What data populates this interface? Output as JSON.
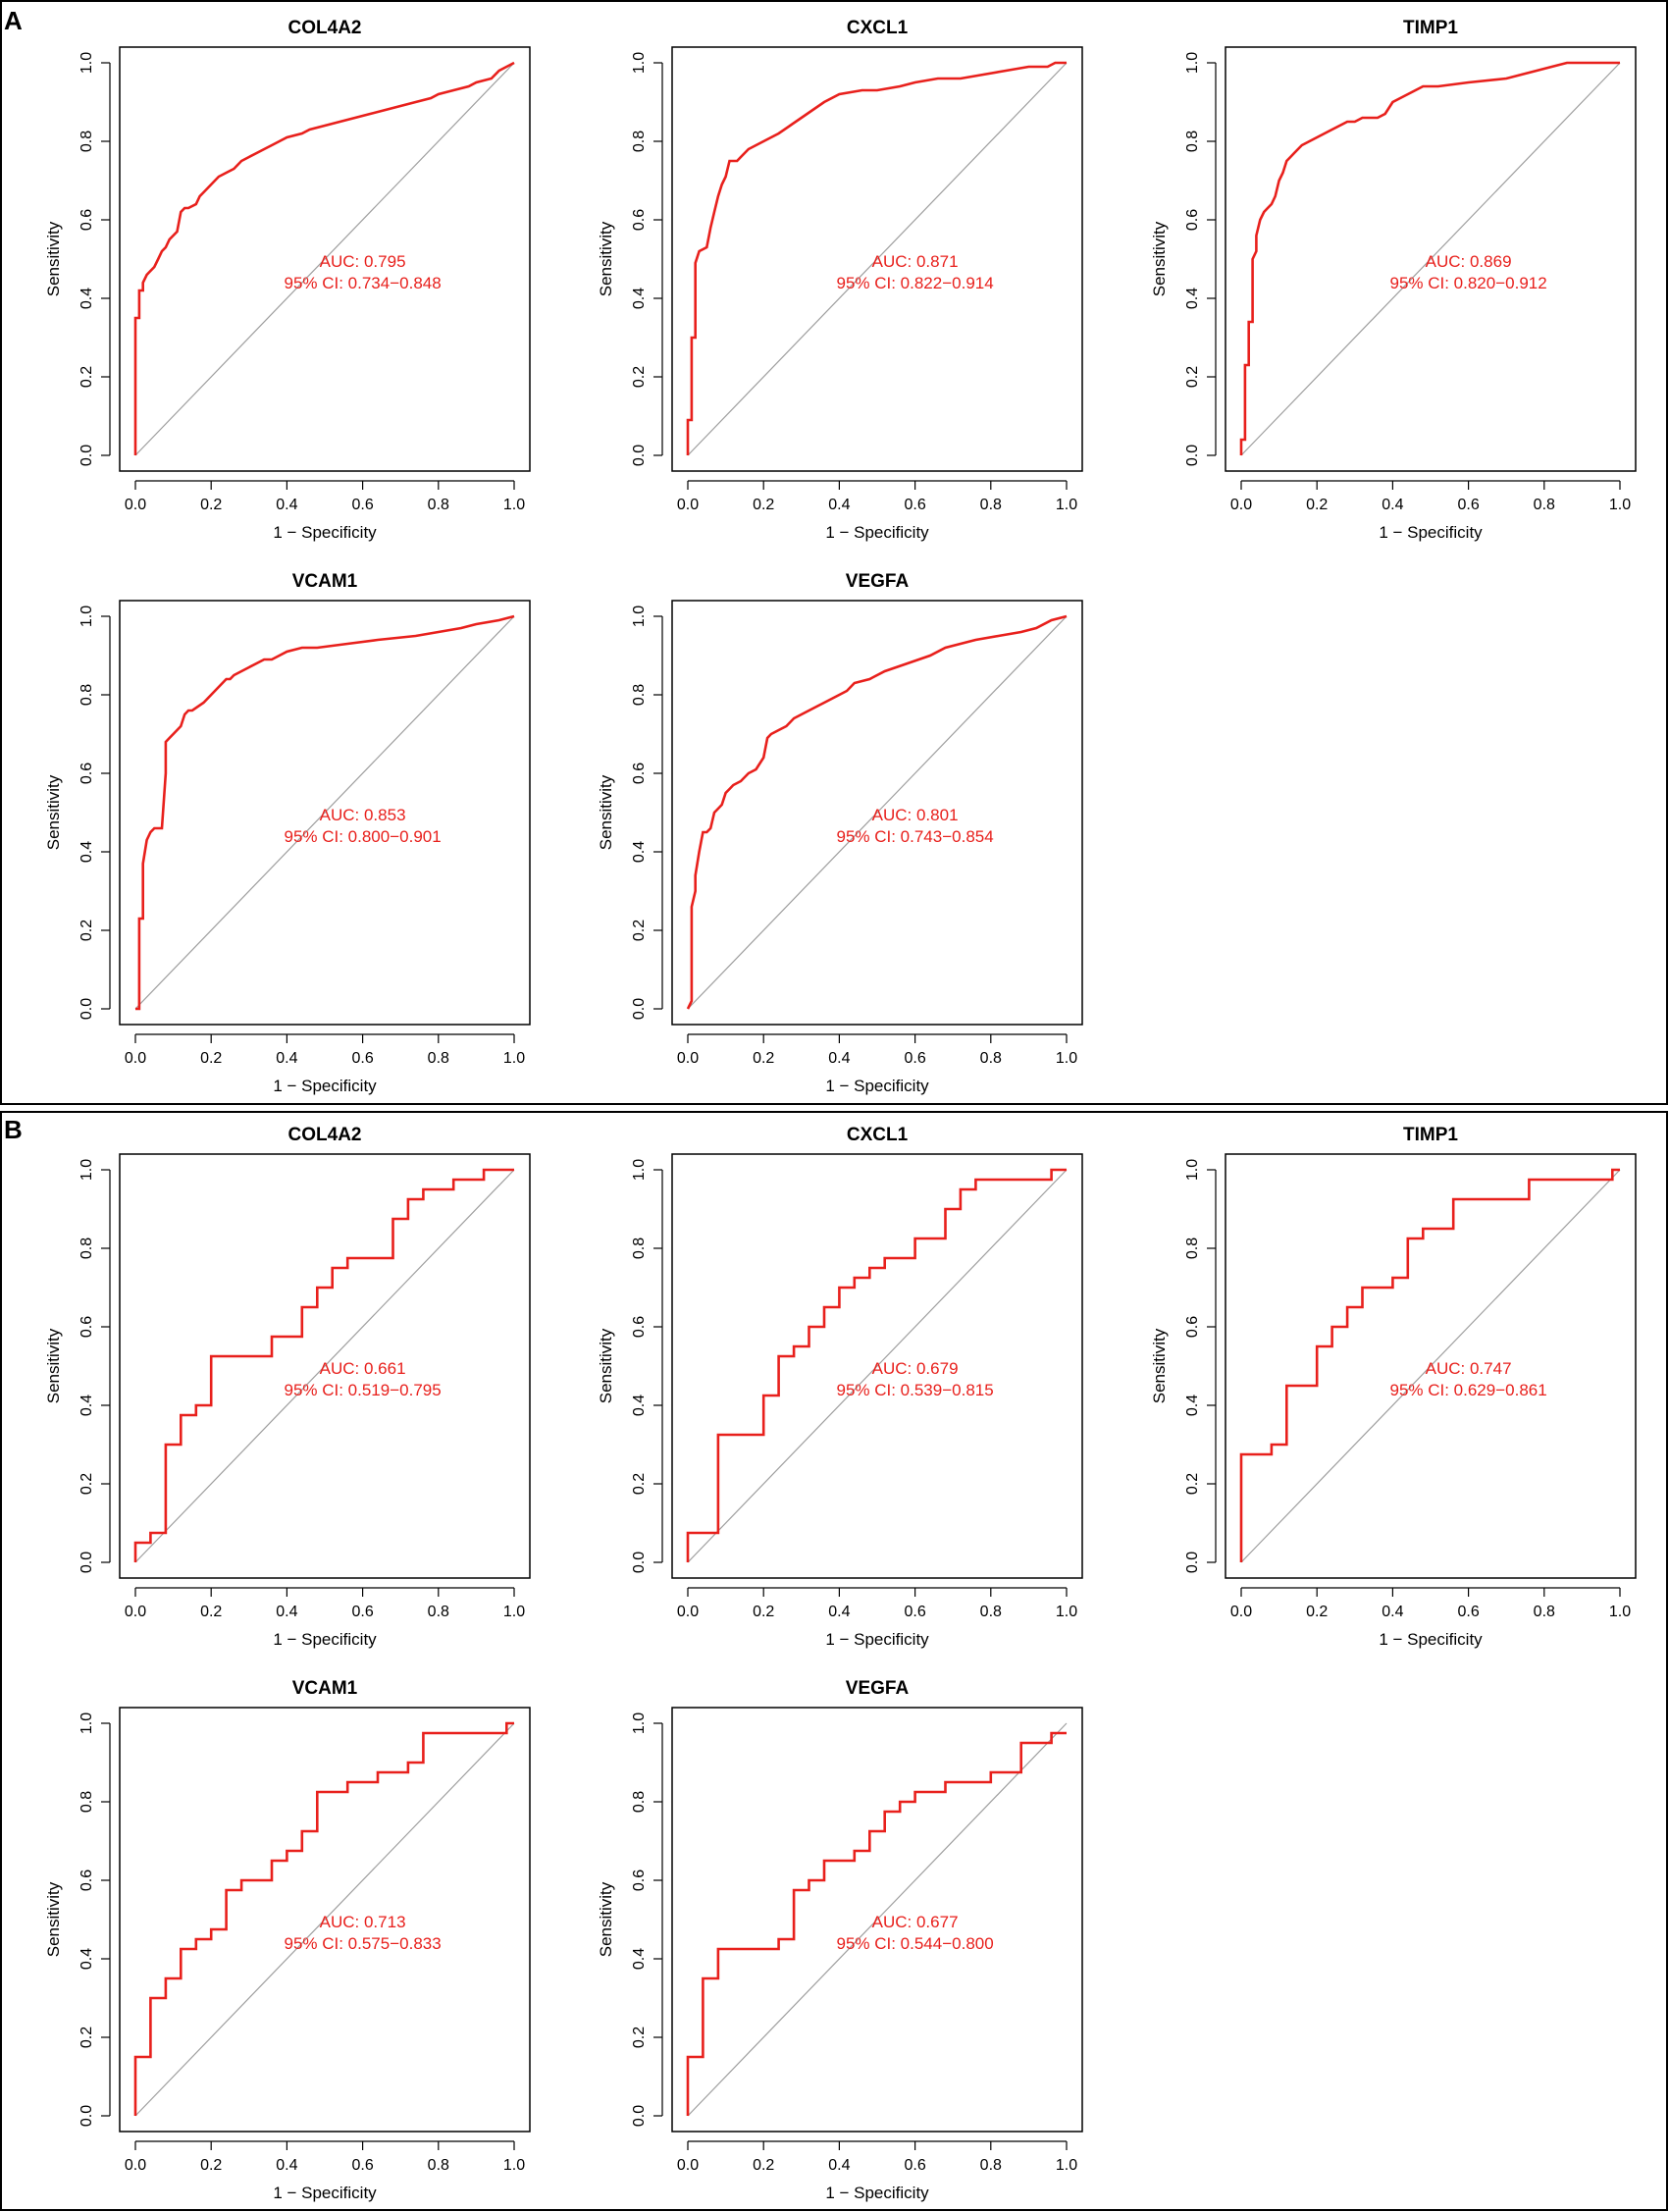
{
  "colors": {
    "roc": "#e8201c",
    "diagonal": "#9e9e9e",
    "axis": "#000000"
  },
  "panels": [
    {
      "letter": "A"
    },
    {
      "letter": "B"
    }
  ],
  "chart_data": [
    {
      "type": "line",
      "panel": "A",
      "title": "COL4A2",
      "xlabel": "1 − Specificity",
      "ylabel": "Sensitivity",
      "xlim": [
        0,
        1
      ],
      "ylim": [
        0,
        1
      ],
      "xticks": [
        "0.0",
        "0.2",
        "0.4",
        "0.6",
        "0.8",
        "1.0"
      ],
      "yticks": [
        "0.0",
        "0.2",
        "0.4",
        "0.6",
        "0.8",
        "1.0"
      ],
      "auc_text": "AUC: 0.795",
      "ci_text": "95% CI: 0.734−0.848",
      "x": [
        0,
        0,
        0.01,
        0.01,
        0.02,
        0.02,
        0.03,
        0.04,
        0.05,
        0.06,
        0.07,
        0.08,
        0.09,
        0.1,
        0.11,
        0.12,
        0.13,
        0.14,
        0.16,
        0.17,
        0.18,
        0.2,
        0.22,
        0.24,
        0.26,
        0.28,
        0.3,
        0.32,
        0.34,
        0.36,
        0.38,
        0.4,
        0.44,
        0.46,
        0.5,
        0.54,
        0.58,
        0.62,
        0.66,
        0.7,
        0.74,
        0.78,
        0.8,
        0.84,
        0.88,
        0.9,
        0.94,
        0.96,
        0.98,
        1.0
      ],
      "y": [
        0,
        0.35,
        0.35,
        0.42,
        0.42,
        0.44,
        0.46,
        0.47,
        0.48,
        0.5,
        0.52,
        0.53,
        0.55,
        0.56,
        0.57,
        0.62,
        0.63,
        0.63,
        0.64,
        0.66,
        0.67,
        0.69,
        0.71,
        0.72,
        0.73,
        0.75,
        0.76,
        0.77,
        0.78,
        0.79,
        0.8,
        0.81,
        0.82,
        0.83,
        0.84,
        0.85,
        0.86,
        0.87,
        0.88,
        0.89,
        0.9,
        0.91,
        0.92,
        0.93,
        0.94,
        0.95,
        0.96,
        0.98,
        0.99,
        1.0
      ]
    },
    {
      "type": "line",
      "panel": "A",
      "title": "CXCL1",
      "xlabel": "1 − Specificity",
      "ylabel": "Sensitivity",
      "xlim": [
        0,
        1
      ],
      "ylim": [
        0,
        1
      ],
      "xticks": [
        "0.0",
        "0.2",
        "0.4",
        "0.6",
        "0.8",
        "1.0"
      ],
      "yticks": [
        "0.0",
        "0.2",
        "0.4",
        "0.6",
        "0.8",
        "1.0"
      ],
      "auc_text": "AUC: 0.871",
      "ci_text": "95% CI: 0.822−0.914",
      "x": [
        0,
        0,
        0.01,
        0.01,
        0.02,
        0.02,
        0.03,
        0.05,
        0.06,
        0.07,
        0.08,
        0.09,
        0.1,
        0.11,
        0.13,
        0.14,
        0.16,
        0.18,
        0.2,
        0.22,
        0.24,
        0.27,
        0.3,
        0.33,
        0.36,
        0.4,
        0.46,
        0.5,
        0.56,
        0.6,
        0.66,
        0.72,
        0.78,
        0.84,
        0.9,
        0.95,
        0.97,
        1.0
      ],
      "y": [
        0,
        0.09,
        0.09,
        0.3,
        0.3,
        0.49,
        0.52,
        0.53,
        0.58,
        0.62,
        0.66,
        0.69,
        0.71,
        0.75,
        0.75,
        0.76,
        0.78,
        0.79,
        0.8,
        0.81,
        0.82,
        0.84,
        0.86,
        0.88,
        0.9,
        0.92,
        0.93,
        0.93,
        0.94,
        0.95,
        0.96,
        0.96,
        0.97,
        0.98,
        0.99,
        0.99,
        1.0,
        1.0
      ]
    },
    {
      "type": "line",
      "panel": "A",
      "title": "TIMP1",
      "xlabel": "1 − Specificity",
      "ylabel": "Sensitivity",
      "xlim": [
        0,
        1
      ],
      "ylim": [
        0,
        1
      ],
      "xticks": [
        "0.0",
        "0.2",
        "0.4",
        "0.6",
        "0.8",
        "1.0"
      ],
      "yticks": [
        "0.0",
        "0.2",
        "0.4",
        "0.6",
        "0.8",
        "1.0"
      ],
      "auc_text": "AUC: 0.869",
      "ci_text": "95% CI: 0.820−0.912",
      "x": [
        0,
        0,
        0.01,
        0.01,
        0.02,
        0.02,
        0.03,
        0.03,
        0.04,
        0.04,
        0.05,
        0.06,
        0.07,
        0.08,
        0.09,
        0.1,
        0.11,
        0.12,
        0.13,
        0.14,
        0.15,
        0.16,
        0.18,
        0.2,
        0.22,
        0.24,
        0.26,
        0.28,
        0.3,
        0.32,
        0.36,
        0.38,
        0.4,
        0.42,
        0.46,
        0.48,
        0.52,
        0.6,
        0.7,
        0.74,
        0.78,
        0.82,
        0.86,
        0.9,
        1.0
      ],
      "y": [
        0,
        0.04,
        0.04,
        0.23,
        0.23,
        0.34,
        0.34,
        0.5,
        0.52,
        0.56,
        0.6,
        0.62,
        0.63,
        0.64,
        0.66,
        0.7,
        0.72,
        0.75,
        0.76,
        0.77,
        0.78,
        0.79,
        0.8,
        0.81,
        0.82,
        0.83,
        0.84,
        0.85,
        0.85,
        0.86,
        0.86,
        0.87,
        0.9,
        0.91,
        0.93,
        0.94,
        0.94,
        0.95,
        0.96,
        0.97,
        0.98,
        0.99,
        1.0,
        1.0,
        1.0
      ]
    },
    {
      "type": "line",
      "panel": "A",
      "title": "VCAM1",
      "xlabel": "1 − Specificity",
      "ylabel": "Sensitivity",
      "xlim": [
        0,
        1
      ],
      "ylim": [
        0,
        1
      ],
      "xticks": [
        "0.0",
        "0.2",
        "0.4",
        "0.6",
        "0.8",
        "1.0"
      ],
      "yticks": [
        "0.0",
        "0.2",
        "0.4",
        "0.6",
        "0.8",
        "1.0"
      ],
      "auc_text": "AUC: 0.853",
      "ci_text": "95% CI: 0.800−0.901",
      "x": [
        0,
        0.01,
        0.01,
        0.02,
        0.02,
        0.03,
        0.04,
        0.05,
        0.07,
        0.08,
        0.08,
        0.09,
        0.1,
        0.12,
        0.13,
        0.14,
        0.15,
        0.18,
        0.2,
        0.22,
        0.24,
        0.25,
        0.26,
        0.28,
        0.3,
        0.32,
        0.34,
        0.36,
        0.38,
        0.4,
        0.44,
        0.48,
        0.56,
        0.64,
        0.74,
        0.8,
        0.86,
        0.9,
        0.96,
        1.0
      ],
      "y": [
        0,
        0,
        0.23,
        0.23,
        0.37,
        0.43,
        0.45,
        0.46,
        0.46,
        0.6,
        0.68,
        0.69,
        0.7,
        0.72,
        0.75,
        0.76,
        0.76,
        0.78,
        0.8,
        0.82,
        0.84,
        0.84,
        0.85,
        0.86,
        0.87,
        0.88,
        0.89,
        0.89,
        0.9,
        0.91,
        0.92,
        0.92,
        0.93,
        0.94,
        0.95,
        0.96,
        0.97,
        0.98,
        0.99,
        1.0
      ]
    },
    {
      "type": "line",
      "panel": "A",
      "title": "VEGFA",
      "xlabel": "1 − Specificity",
      "ylabel": "Sensitivity",
      "xlim": [
        0,
        1
      ],
      "ylim": [
        0,
        1
      ],
      "xticks": [
        "0.0",
        "0.2",
        "0.4",
        "0.6",
        "0.8",
        "1.0"
      ],
      "yticks": [
        "0.0",
        "0.2",
        "0.4",
        "0.6",
        "0.8",
        "1.0"
      ],
      "auc_text": "AUC: 0.801",
      "ci_text": "95% CI: 0.743−0.854",
      "x": [
        0,
        0.01,
        0.01,
        0.02,
        0.02,
        0.03,
        0.04,
        0.05,
        0.06,
        0.07,
        0.08,
        0.09,
        0.1,
        0.11,
        0.12,
        0.14,
        0.16,
        0.18,
        0.2,
        0.21,
        0.22,
        0.24,
        0.26,
        0.28,
        0.3,
        0.32,
        0.34,
        0.36,
        0.38,
        0.4,
        0.42,
        0.44,
        0.48,
        0.52,
        0.58,
        0.64,
        0.68,
        0.72,
        0.76,
        0.82,
        0.88,
        0.92,
        0.96,
        1.0
      ],
      "y": [
        0,
        0.02,
        0.26,
        0.3,
        0.34,
        0.4,
        0.45,
        0.45,
        0.46,
        0.5,
        0.51,
        0.52,
        0.55,
        0.56,
        0.57,
        0.58,
        0.6,
        0.61,
        0.64,
        0.69,
        0.7,
        0.71,
        0.72,
        0.74,
        0.75,
        0.76,
        0.77,
        0.78,
        0.79,
        0.8,
        0.81,
        0.83,
        0.84,
        0.86,
        0.88,
        0.9,
        0.92,
        0.93,
        0.94,
        0.95,
        0.96,
        0.97,
        0.99,
        1.0
      ]
    },
    {
      "type": "line",
      "panel": "B",
      "title": "COL4A2",
      "xlabel": "1 − Specificity",
      "ylabel": "Sensitivity",
      "xlim": [
        0,
        1
      ],
      "ylim": [
        0,
        1
      ],
      "xticks": [
        "0.0",
        "0.2",
        "0.4",
        "0.6",
        "0.8",
        "1.0"
      ],
      "yticks": [
        "0.0",
        "0.2",
        "0.4",
        "0.6",
        "0.8",
        "1.0"
      ],
      "auc_text": "AUC: 0.661",
      "ci_text": "95% CI: 0.519−0.795",
      "x": [
        0,
        0,
        0.04,
        0.04,
        0.08,
        0.08,
        0.12,
        0.12,
        0.16,
        0.16,
        0.2,
        0.2,
        0.36,
        0.36,
        0.44,
        0.44,
        0.48,
        0.48,
        0.52,
        0.52,
        0.56,
        0.56,
        0.68,
        0.68,
        0.72,
        0.72,
        0.76,
        0.76,
        0.84,
        0.84,
        0.92,
        0.92,
        1.0
      ],
      "y": [
        0,
        0.05,
        0.05,
        0.075,
        0.075,
        0.3,
        0.3,
        0.375,
        0.375,
        0.4,
        0.4,
        0.525,
        0.525,
        0.575,
        0.575,
        0.65,
        0.65,
        0.7,
        0.7,
        0.75,
        0.75,
        0.775,
        0.775,
        0.875,
        0.875,
        0.925,
        0.925,
        0.95,
        0.95,
        0.975,
        0.975,
        1.0,
        1.0
      ]
    },
    {
      "type": "line",
      "panel": "B",
      "title": "CXCL1",
      "xlabel": "1 − Specificity",
      "ylabel": "Sensitivity",
      "xlim": [
        0,
        1
      ],
      "ylim": [
        0,
        1
      ],
      "xticks": [
        "0.0",
        "0.2",
        "0.4",
        "0.6",
        "0.8",
        "1.0"
      ],
      "yticks": [
        "0.0",
        "0.2",
        "0.4",
        "0.6",
        "0.8",
        "1.0"
      ],
      "auc_text": "AUC: 0.679",
      "ci_text": "95% CI: 0.539−0.815",
      "x": [
        0,
        0,
        0.08,
        0.08,
        0.2,
        0.2,
        0.24,
        0.24,
        0.28,
        0.28,
        0.32,
        0.32,
        0.36,
        0.36,
        0.4,
        0.4,
        0.44,
        0.44,
        0.48,
        0.48,
        0.52,
        0.52,
        0.6,
        0.6,
        0.68,
        0.68,
        0.72,
        0.72,
        0.76,
        0.76,
        0.96,
        0.96,
        1.0
      ],
      "y": [
        0,
        0.075,
        0.075,
        0.325,
        0.325,
        0.425,
        0.425,
        0.525,
        0.525,
        0.55,
        0.55,
        0.6,
        0.6,
        0.65,
        0.65,
        0.7,
        0.7,
        0.725,
        0.725,
        0.75,
        0.75,
        0.775,
        0.775,
        0.825,
        0.825,
        0.9,
        0.9,
        0.95,
        0.95,
        0.975,
        0.975,
        1.0,
        1.0
      ]
    },
    {
      "type": "line",
      "panel": "B",
      "title": "TIMP1",
      "xlabel": "1 − Specificity",
      "ylabel": "Sensitivity",
      "xlim": [
        0,
        1
      ],
      "ylim": [
        0,
        1
      ],
      "xticks": [
        "0.0",
        "0.2",
        "0.4",
        "0.6",
        "0.8",
        "1.0"
      ],
      "yticks": [
        "0.0",
        "0.2",
        "0.4",
        "0.6",
        "0.8",
        "1.0"
      ],
      "auc_text": "AUC: 0.747",
      "ci_text": "95% CI: 0.629−0.861",
      "x": [
        0,
        0,
        0.08,
        0.08,
        0.12,
        0.12,
        0.2,
        0.2,
        0.24,
        0.24,
        0.28,
        0.28,
        0.32,
        0.32,
        0.4,
        0.4,
        0.44,
        0.44,
        0.48,
        0.48,
        0.56,
        0.56,
        0.76,
        0.76,
        0.98,
        0.98,
        1.0
      ],
      "y": [
        0,
        0.275,
        0.275,
        0.3,
        0.3,
        0.45,
        0.45,
        0.55,
        0.55,
        0.6,
        0.6,
        0.65,
        0.65,
        0.7,
        0.7,
        0.725,
        0.725,
        0.825,
        0.825,
        0.85,
        0.85,
        0.925,
        0.925,
        0.975,
        0.975,
        1.0,
        1.0
      ]
    },
    {
      "type": "line",
      "panel": "B",
      "title": "VCAM1",
      "xlabel": "1 − Specificity",
      "ylabel": "Sensitivity",
      "xlim": [
        0,
        1
      ],
      "ylim": [
        0,
        1
      ],
      "xticks": [
        "0.0",
        "0.2",
        "0.4",
        "0.6",
        "0.8",
        "1.0"
      ],
      "yticks": [
        "0.0",
        "0.2",
        "0.4",
        "0.6",
        "0.8",
        "1.0"
      ],
      "auc_text": "AUC: 0.713",
      "ci_text": "95% CI: 0.575−0.833",
      "x": [
        0,
        0,
        0.04,
        0.04,
        0.08,
        0.08,
        0.12,
        0.12,
        0.16,
        0.16,
        0.2,
        0.2,
        0.24,
        0.24,
        0.28,
        0.28,
        0.36,
        0.36,
        0.4,
        0.4,
        0.44,
        0.44,
        0.48,
        0.48,
        0.56,
        0.56,
        0.64,
        0.64,
        0.72,
        0.72,
        0.76,
        0.76,
        0.98,
        0.98,
        1.0
      ],
      "y": [
        0,
        0.15,
        0.15,
        0.3,
        0.3,
        0.35,
        0.35,
        0.425,
        0.425,
        0.45,
        0.45,
        0.475,
        0.475,
        0.575,
        0.575,
        0.6,
        0.6,
        0.65,
        0.65,
        0.675,
        0.675,
        0.725,
        0.725,
        0.825,
        0.825,
        0.85,
        0.85,
        0.875,
        0.875,
        0.9,
        0.9,
        0.975,
        0.975,
        1.0,
        1.0
      ]
    },
    {
      "type": "line",
      "panel": "B",
      "title": "VEGFA",
      "xlabel": "1 − Specificity",
      "ylabel": "Sensitivity",
      "xlim": [
        0,
        1
      ],
      "ylim": [
        0,
        1
      ],
      "xticks": [
        "0.0",
        "0.2",
        "0.4",
        "0.6",
        "0.8",
        "1.0"
      ],
      "yticks": [
        "0.0",
        "0.2",
        "0.4",
        "0.6",
        "0.8",
        "1.0"
      ],
      "auc_text": "AUC: 0.677",
      "ci_text": "95% CI: 0.544−0.800",
      "x": [
        0,
        0,
        0.04,
        0.04,
        0.08,
        0.08,
        0.24,
        0.24,
        0.28,
        0.28,
        0.32,
        0.32,
        0.36,
        0.36,
        0.44,
        0.44,
        0.48,
        0.48,
        0.52,
        0.52,
        0.56,
        0.56,
        0.6,
        0.6,
        0.68,
        0.68,
        0.8,
        0.8,
        0.88,
        0.88,
        0.96,
        0.96,
        1.0
      ],
      "y": [
        0,
        0.15,
        0.15,
        0.35,
        0.35,
        0.425,
        0.425,
        0.45,
        0.45,
        0.575,
        0.575,
        0.6,
        0.6,
        0.65,
        0.65,
        0.675,
        0.675,
        0.725,
        0.725,
        0.775,
        0.775,
        0.8,
        0.8,
        0.825,
        0.825,
        0.85,
        0.85,
        0.875,
        0.875,
        0.95,
        0.95,
        0.975,
        0.975
      ]
    }
  ]
}
